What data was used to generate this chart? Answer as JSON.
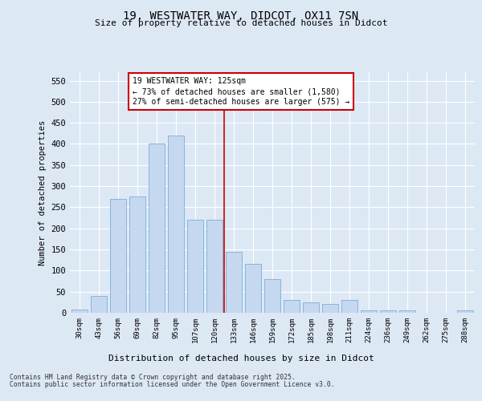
{
  "title_line1": "19, WESTWATER WAY, DIDCOT, OX11 7SN",
  "title_line2": "Size of property relative to detached houses in Didcot",
  "xlabel": "Distribution of detached houses by size in Didcot",
  "ylabel": "Number of detached properties",
  "categories": [
    "30sqm",
    "43sqm",
    "56sqm",
    "69sqm",
    "82sqm",
    "95sqm",
    "107sqm",
    "120sqm",
    "133sqm",
    "146sqm",
    "159sqm",
    "172sqm",
    "185sqm",
    "198sqm",
    "211sqm",
    "224sqm",
    "236sqm",
    "249sqm",
    "262sqm",
    "275sqm",
    "288sqm"
  ],
  "values": [
    8,
    40,
    270,
    275,
    400,
    420,
    220,
    220,
    145,
    115,
    80,
    30,
    25,
    20,
    30,
    5,
    5,
    5,
    0,
    0,
    5
  ],
  "bar_color": "#c5d8f0",
  "bar_edge_color": "#7bafd4",
  "vline_x_index": 7,
  "vline_color": "#cc0000",
  "annotation_title": "19 WESTWATER WAY: 125sqm",
  "annotation_line1": "← 73% of detached houses are smaller (1,580)",
  "annotation_line2": "27% of semi-detached houses are larger (575) →",
  "annotation_box_color": "#cc0000",
  "annotation_box_fill": "#ffffff",
  "ylim": [
    0,
    570
  ],
  "yticks": [
    0,
    50,
    100,
    150,
    200,
    250,
    300,
    350,
    400,
    450,
    500,
    550
  ],
  "background_color": "#dde8f5",
  "grid_color": "#ffffff",
  "footer_line1": "Contains HM Land Registry data © Crown copyright and database right 2025.",
  "footer_line2": "Contains public sector information licensed under the Open Government Licence v3.0."
}
